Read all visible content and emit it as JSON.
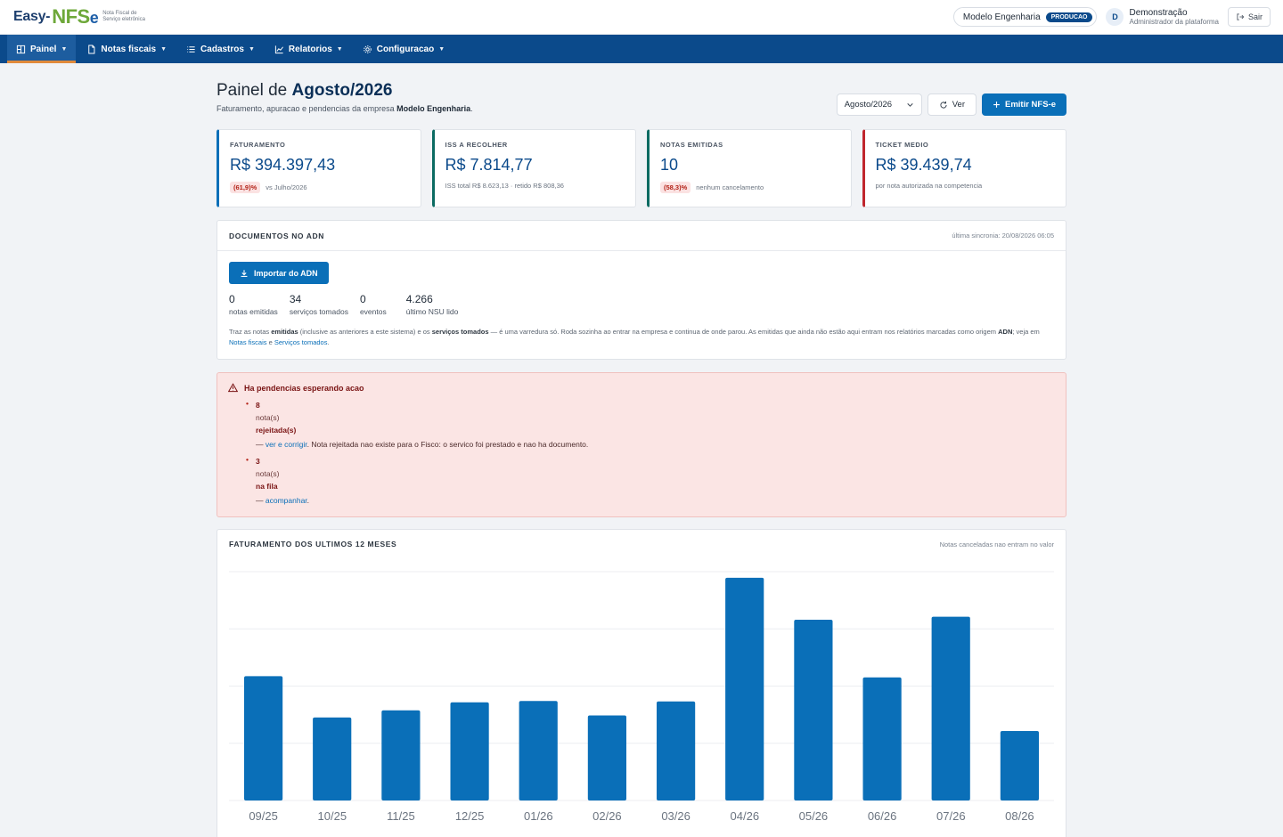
{
  "brand": {
    "word": "Easy-",
    "nfs": "NFS",
    "e": "e",
    "tagline_1": "Nota Fiscal de",
    "tagline_2": "Serviço eletrônica"
  },
  "topbar": {
    "company": "Modelo Engenharia",
    "env_badge": "PRODUCAO",
    "avatar_initial": "D",
    "user_name": "Demonstração",
    "user_role": "Administrador da plataforma",
    "logout_label": "Sair"
  },
  "nav": {
    "items": [
      {
        "label": "Painel",
        "icon": "dashboard-icon",
        "active": true
      },
      {
        "label": "Notas fiscais",
        "icon": "document-icon"
      },
      {
        "label": "Cadastros",
        "icon": "list-icon"
      },
      {
        "label": "Relatorios",
        "icon": "chart-icon"
      },
      {
        "label": "Configuracao",
        "icon": "gear-icon"
      }
    ]
  },
  "page": {
    "title_prefix": "Painel de ",
    "title_period": "Agosto/2026",
    "subtitle_prefix": "Faturamento, apuracao e pendencias da empresa ",
    "subtitle_company": "Modelo Engenharia",
    "subtitle_suffix": ".",
    "period_value": "Agosto/2026",
    "view_label": "Ver",
    "emit_label": "Emitir NFS-e"
  },
  "kpis": [
    {
      "label": "FATURAMENTO",
      "value": "R$ 394.397,43",
      "badge": "(61,9)%",
      "foot": "vs Julho/2026"
    },
    {
      "label": "ISS A RECOLHER",
      "value": "R$ 7.814,77",
      "badge": "",
      "foot": "ISS total R$ 8.623,13 · retido R$ 808,36"
    },
    {
      "label": "NOTAS EMITIDAS",
      "value": "10",
      "badge": "(58,3)%",
      "foot": "nenhum cancelamento"
    },
    {
      "label": "TICKET MEDIO",
      "value": "R$ 39.439,74",
      "badge": "",
      "foot": "por nota autorizada na competencia"
    }
  ],
  "adn": {
    "title": "DOCUMENTOS NO ADN",
    "last_sync": "última sincronia: 20/08/2026 06:05",
    "import_label": "Importar do ADN",
    "stats": [
      {
        "value": "0",
        "label": "notas emitidas"
      },
      {
        "value": "34",
        "label": "serviços tomados"
      },
      {
        "value": "0",
        "label": "eventos"
      },
      {
        "value": "4.266",
        "label": "último NSU lido"
      }
    ],
    "note_1": "Traz as notas ",
    "note_b1": "emitidas",
    "note_2": " (inclusive as anteriores a este sistema) e os ",
    "note_b2": "serviços tomados",
    "note_3": " — é uma varredura só. Roda sozinha ao entrar na empresa e continua de onde parou. As emitidas que ainda não estão aqui entram nos relatórios marcadas como origem ",
    "note_b3": "ADN",
    "note_4": "; veja em",
    "link_1": "Notas fiscais",
    "note_5": " e ",
    "link_2": "Serviços tomados",
    "note_6": "."
  },
  "alert": {
    "title": "Ha pendencias esperando acao",
    "items": [
      {
        "count": "8",
        "unit": "nota(s)",
        "status": "rejeitada(s)",
        "dash": "— ",
        "link": "ver e corrigir",
        "desc": ". Nota rejeitada nao existe para o Fisco: o servico foi prestado e nao ha documento."
      },
      {
        "count": "3",
        "unit": "nota(s)",
        "status": "na fila",
        "dash": "— ",
        "link": "acompanhar",
        "desc": "."
      }
    ]
  },
  "chart_panel": {
    "title": "FATURAMENTO DOS ULTIMOS 12 MESES",
    "meta": "Notas canceladas nao entram no valor"
  },
  "chart_data": {
    "type": "bar",
    "categories": [
      "09/25",
      "10/25",
      "11/25",
      "12/25",
      "01/26",
      "02/26",
      "03/26",
      "04/26",
      "05/26",
      "06/26",
      "07/26",
      "08/26"
    ],
    "values": [
      706000,
      472000,
      512000,
      558000,
      565000,
      483000,
      563000,
      1265000,
      1027000,
      699000,
      1044000,
      394397.43
    ],
    "bar_color": "#0a6fb8",
    "grid": true,
    "ylim": [
      0,
      1300000
    ]
  }
}
